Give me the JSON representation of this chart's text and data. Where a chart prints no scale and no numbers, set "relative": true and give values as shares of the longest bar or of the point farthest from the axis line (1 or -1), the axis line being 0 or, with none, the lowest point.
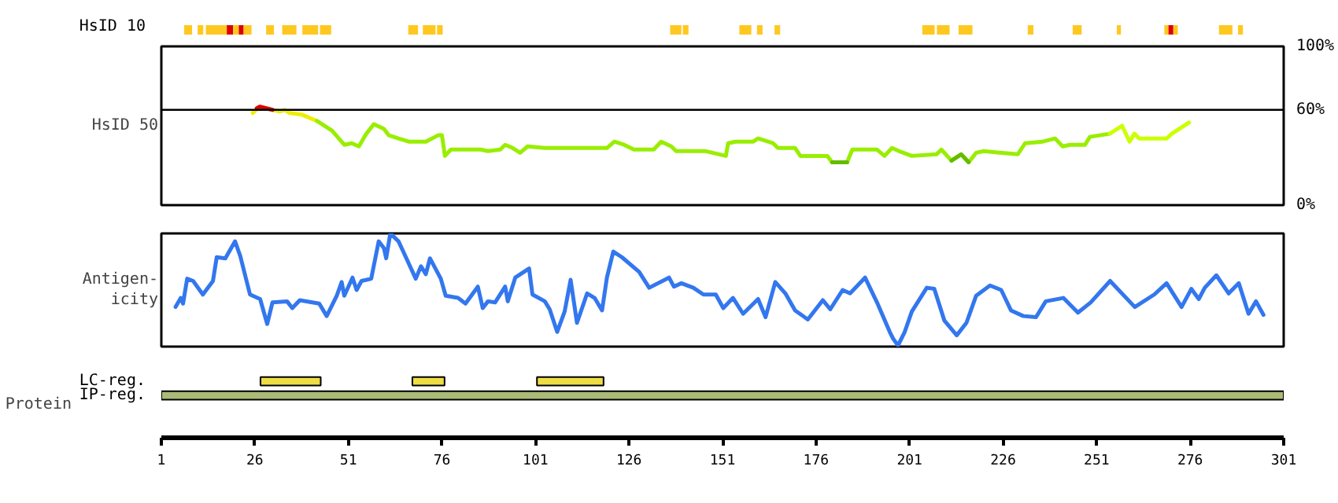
{
  "chart_data": [
    {
      "type": "bar",
      "orientation": "horizontal",
      "categories": [
        "HsID 10"
      ],
      "xlim": [
        1,
        301
      ],
      "tick_labels": false,
      "series": [
        {
          "color": "#ffc820",
          "base": [
            7.1
          ],
          "values": [
            2.1
          ]
        },
        {
          "color": "#ffc820",
          "base": [
            10.7
          ],
          "values": [
            1.5
          ]
        },
        {
          "color": "#ffc820",
          "base": [
            12.9
          ],
          "values": [
            5.6
          ]
        },
        {
          "color": "#dd0000",
          "base": [
            18.5
          ],
          "values": [
            1.7
          ]
        },
        {
          "color": "#ffc820",
          "base": [
            20.2
          ],
          "values": [
            1.5
          ]
        },
        {
          "color": "#dd0000",
          "base": [
            21.7
          ],
          "values": [
            1.3
          ]
        },
        {
          "color": "#ffc820",
          "base": [
            23.0
          ],
          "values": [
            2.1
          ]
        },
        {
          "color": "#ffc820",
          "base": [
            29.0
          ],
          "values": [
            2.1
          ]
        },
        {
          "color": "#ffc820",
          "base": [
            33.3
          ],
          "values": [
            3.8
          ]
        },
        {
          "color": "#ffc820",
          "base": [
            38.7
          ],
          "values": [
            4.2
          ]
        },
        {
          "color": "#ffc820",
          "base": [
            43.4
          ],
          "values": [
            3.0
          ]
        },
        {
          "color": "#ffc820",
          "base": [
            67.0
          ],
          "values": [
            2.6
          ]
        },
        {
          "color": "#ffc820",
          "base": [
            70.9
          ],
          "values": [
            3.4
          ]
        },
        {
          "color": "#ffc820",
          "base": [
            74.7
          ],
          "values": [
            1.5
          ]
        },
        {
          "color": "#ffc820",
          "base": [
            137.0
          ],
          "values": [
            3.0
          ]
        },
        {
          "color": "#ffc820",
          "base": [
            140.4
          ],
          "values": [
            1.5
          ]
        },
        {
          "color": "#ffc820",
          "base": [
            155.5
          ],
          "values": [
            3.2
          ]
        },
        {
          "color": "#ffc820",
          "base": [
            160.2
          ],
          "values": [
            1.5
          ]
        },
        {
          "color": "#ffc820",
          "base": [
            164.9
          ],
          "values": [
            1.5
          ]
        },
        {
          "color": "#ffc820",
          "base": [
            204.4
          ],
          "values": [
            3.3
          ]
        },
        {
          "color": "#ffc820",
          "base": [
            208.3
          ],
          "values": [
            3.4
          ]
        },
        {
          "color": "#ffc820",
          "base": [
            214.1
          ],
          "values": [
            3.7
          ]
        },
        {
          "color": "#ffc820",
          "base": [
            232.6
          ],
          "values": [
            1.5
          ]
        },
        {
          "color": "#ffc820",
          "base": [
            244.6
          ],
          "values": [
            2.4
          ]
        },
        {
          "color": "#ffc820",
          "base": [
            256.4
          ],
          "values": [
            1.1
          ]
        },
        {
          "color": "#ffc820",
          "base": [
            269.1
          ],
          "values": [
            1.1
          ]
        },
        {
          "color": "#dd0000",
          "base": [
            270.2
          ],
          "values": [
            1.3
          ]
        },
        {
          "color": "#ffc820",
          "base": [
            271.5
          ],
          "values": [
            1.2
          ]
        },
        {
          "color": "#ffc820",
          "base": [
            283.7
          ],
          "values": [
            3.6
          ]
        },
        {
          "color": "#ffc820",
          "base": [
            288.8
          ],
          "values": [
            1.3
          ]
        }
      ]
    },
    {
      "type": "line",
      "ylabel": "HsID 50",
      "xlim": [
        1,
        301
      ],
      "ylim": [
        0,
        100
      ],
      "yticks": [
        {
          "value": 0,
          "label": "0%"
        },
        {
          "value": 60,
          "label": "60%"
        },
        {
          "value": 100,
          "label": "100%"
        }
      ],
      "tick_labels": "y",
      "ref_lines": [
        {
          "axis": "y",
          "value": 60,
          "color": "#000000"
        }
      ],
      "series": [
        {
          "color": "#eeee00",
          "x": [
            25.4,
            27.3,
            30.7,
            32.7,
            34.0,
            35.3,
            38.6,
            42.6
          ],
          "values": [
            58,
            62,
            60,
            59,
            60,
            58,
            57,
            53
          ]
        },
        {
          "color": "#dd0000",
          "x": [
            26.5,
            27.3,
            30.7
          ],
          "values": [
            61,
            62,
            60
          ]
        },
        {
          "color": "#99ee00",
          "x": [
            42.6,
            46.6,
            49.9,
            51.9,
            53.8,
            55.8,
            57.8,
            60.5,
            61.8,
            67.1,
            71.7,
            75.0,
            76.0,
            76.8,
            78.4,
            86.3,
            88.3,
            91.6,
            92.9,
            94.9,
            96.9,
            98.9,
            103.5,
            120.1,
            122.1,
            124.7,
            127.3,
            132.6,
            134.6,
            137.3,
            138.6,
            146.5,
            151.9,
            152.5,
            154.5,
            159.2,
            160.5,
            164.5,
            165.8,
            170.4,
            171.8,
            179.0,
            180.3,
            184.3,
            185.7,
            192.3,
            194.3,
            196.3,
            198.2,
            201.6,
            208.2,
            209.5,
            212.2,
            214.8,
            216.8,
            218.8,
            220.8,
            229.9,
            231.9,
            236.6,
            239.9,
            241.9,
            243.9,
            247.9,
            249.2,
            254.5
          ],
          "values": [
            53,
            47,
            38,
            39,
            37,
            45,
            51,
            48,
            44,
            40,
            40,
            44,
            44,
            31,
            35,
            35,
            34,
            35,
            38,
            36,
            33,
            37,
            36,
            36,
            40,
            38,
            35,
            35,
            40,
            37,
            34,
            34,
            31,
            39,
            40,
            40,
            42,
            39,
            36,
            36,
            31,
            31,
            27,
            27,
            35,
            35,
            31,
            36,
            34,
            31,
            32,
            35,
            28,
            32,
            27,
            33,
            34,
            32,
            39,
            40,
            42,
            37,
            38,
            38,
            43,
            45
          ]
        },
        {
          "color": "#66bb00",
          "x": [
            180.3,
            184.3
          ],
          "values": [
            27,
            27
          ]
        },
        {
          "color": "#66bb00",
          "x": [
            212.2,
            214.8,
            216.8
          ],
          "values": [
            28,
            32,
            27
          ]
        },
        {
          "color": "#ccff00",
          "x": [
            254.5,
            257.8,
            259.8,
            261.1,
            262.4,
            269.7,
            271.1,
            275.7
          ],
          "values": [
            45,
            50,
            40,
            45,
            42,
            42,
            45,
            52
          ]
        }
      ]
    },
    {
      "type": "line",
      "ylabel": "Antigen-\nicity",
      "relative": true,
      "xlim": [
        1,
        301
      ],
      "tick_labels": false,
      "series": [
        {
          "color": "#3377ee",
          "x": [
            4.8,
            6.2,
            6.8,
            7.9,
            9.5,
            12.1,
            14.8,
            15.8,
            18.1,
            20.7,
            22.1,
            24.7,
            27.4,
            29.3,
            30.7,
            34.6,
            36.0,
            38.0,
            43.2,
            45.2,
            47.9,
            49.2,
            49.9,
            52.1,
            53.2,
            54.5,
            57.1,
            59.1,
            60.5,
            61.1,
            62.2,
            64.4,
            69.0,
            70.4,
            71.7,
            72.8,
            75.7,
            77.0,
            80.3,
            82.3,
            85.6,
            86.9,
            88.3,
            90.2,
            92.9,
            93.6,
            95.6,
            99.3,
            100.2,
            103.5,
            104.8,
            106.8,
            108.8,
            110.4,
            112.1,
            114.8,
            116.8,
            118.8,
            120.1,
            121.8,
            124.1,
            128.7,
            131.4,
            136.7,
            138.0,
            140.0,
            143.2,
            145.9,
            149.2,
            151.2,
            153.8,
            156.5,
            160.5,
            162.5,
            165.1,
            167.8,
            170.4,
            173.8,
            177.8,
            179.8,
            183.1,
            185.1,
            189.1,
            192.3,
            195.7,
            196.6,
            197.9,
            199.7,
            201.6,
            205.6,
            207.6,
            210.3,
            213.6,
            216.2,
            218.8,
            222.5,
            225.5,
            228.1,
            231.4,
            234.8,
            237.4,
            242.1,
            246.0,
            249.4,
            254.6,
            261.2,
            266.4,
            269.7,
            273.7,
            276.3,
            278.3,
            279.9,
            283.0,
            286.3,
            289.0,
            291.6,
            293.6,
            295.6
          ],
          "values": [
            0.35,
            0.43,
            0.38,
            0.6,
            0.58,
            0.46,
            0.58,
            0.79,
            0.78,
            0.93,
            0.8,
            0.46,
            0.42,
            0.2,
            0.39,
            0.4,
            0.34,
            0.41,
            0.38,
            0.27,
            0.45,
            0.57,
            0.45,
            0.61,
            0.5,
            0.58,
            0.6,
            0.93,
            0.87,
            0.78,
            1.0,
            0.93,
            0.6,
            0.71,
            0.64,
            0.78,
            0.6,
            0.45,
            0.43,
            0.38,
            0.53,
            0.34,
            0.4,
            0.39,
            0.53,
            0.4,
            0.61,
            0.69,
            0.46,
            0.4,
            0.33,
            0.13,
            0.31,
            0.59,
            0.21,
            0.47,
            0.43,
            0.32,
            0.61,
            0.84,
            0.79,
            0.66,
            0.52,
            0.61,
            0.53,
            0.56,
            0.52,
            0.46,
            0.46,
            0.34,
            0.43,
            0.29,
            0.42,
            0.26,
            0.57,
            0.47,
            0.32,
            0.24,
            0.41,
            0.33,
            0.5,
            0.47,
            0.61,
            0.39,
            0.13,
            0.07,
            0.01,
            0.13,
            0.31,
            0.52,
            0.51,
            0.23,
            0.1,
            0.21,
            0.45,
            0.54,
            0.5,
            0.32,
            0.27,
            0.26,
            0.4,
            0.43,
            0.3,
            0.39,
            0.58,
            0.35,
            0.46,
            0.56,
            0.35,
            0.51,
            0.42,
            0.52,
            0.63,
            0.47,
            0.56,
            0.29,
            0.4,
            0.28
          ]
        }
      ]
    },
    {
      "type": "bar",
      "orientation": "horizontal",
      "categories": [
        "LC-reg.",
        "IP-reg."
      ],
      "xlabel": "Protein",
      "xlim": [
        1,
        301
      ],
      "xticks": [
        1,
        26,
        51,
        76,
        101,
        126,
        151,
        176,
        201,
        226,
        251,
        276,
        301
      ],
      "tick_labels": "x",
      "series": [
        {
          "color": "#eedd44",
          "base": [
            27.5,
            null
          ],
          "values": [
            16.1,
            null
          ]
        },
        {
          "color": "#eedd44",
          "base": [
            68.1,
            null
          ],
          "values": [
            8.6,
            null
          ]
        },
        {
          "color": "#eedd44",
          "base": [
            101.4,
            null
          ],
          "values": [
            17.8,
            null
          ]
        },
        {
          "color": "#aabb77",
          "base": [
            null,
            1
          ],
          "values": [
            null,
            300
          ]
        }
      ]
    }
  ]
}
